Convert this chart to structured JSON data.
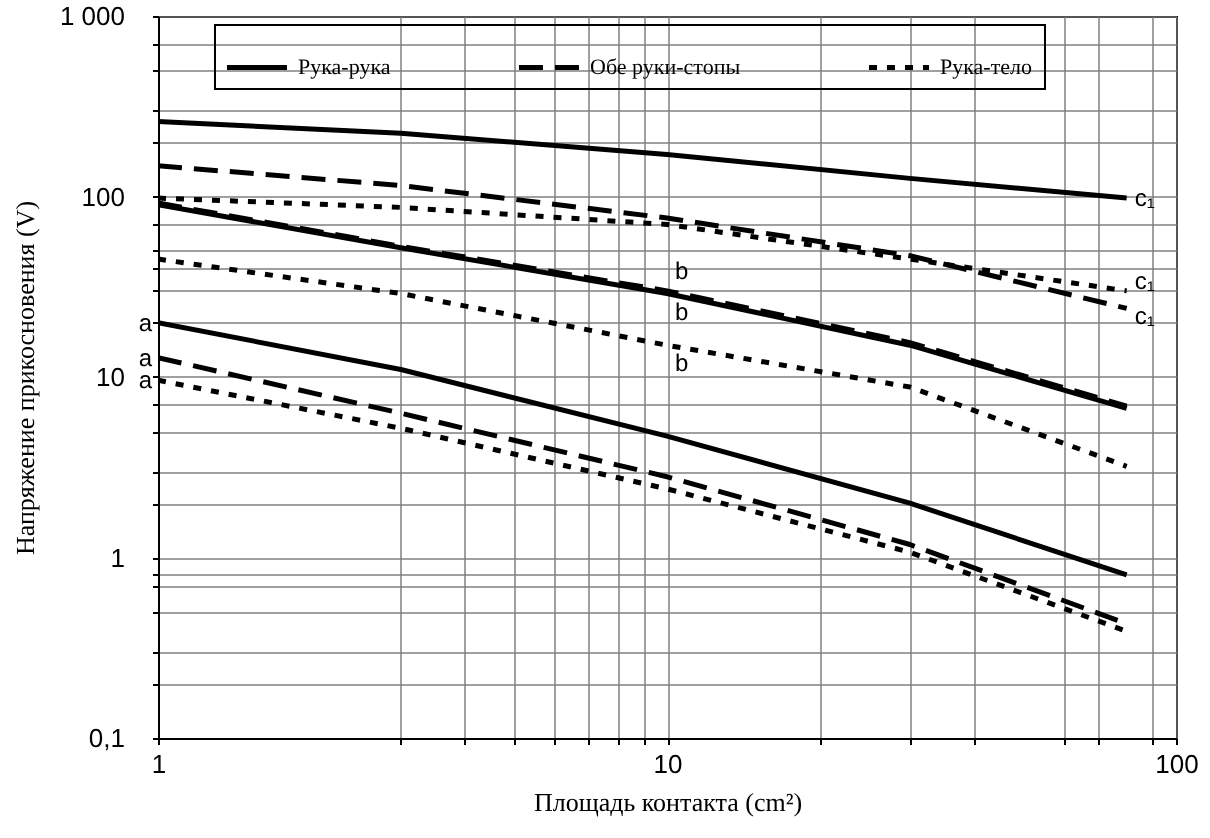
{
  "chart_data": {
    "type": "line",
    "xlabel": "Площадь контакта (cm²)",
    "ylabel": "Напряжение прикосновения (V)",
    "log": "xy",
    "grid": true,
    "legend": "top",
    "xlim": [
      1,
      100
    ],
    "ylim": [
      0.1,
      1000
    ],
    "xticks": [
      1,
      {
        "value": 3,
        "label": null
      },
      {
        "value": 4,
        "label": null
      },
      {
        "value": 5,
        "label": null
      },
      {
        "value": 6,
        "label": null
      },
      {
        "value": 7,
        "label": null
      },
      {
        "value": 8,
        "label": null
      },
      {
        "value": 9,
        "label": null
      },
      10,
      {
        "value": 20,
        "label": null
      },
      {
        "value": 30,
        "label": null
      },
      {
        "value": 40,
        "label": null
      },
      {
        "value": 60,
        "label": null
      },
      {
        "value": 70,
        "label": null
      },
      {
        "value": 90,
        "label": null
      },
      100
    ],
    "yticks": [
      {
        "value": 0.1,
        "label": "0,1"
      },
      {
        "value": 0.2,
        "label": null
      },
      {
        "value": 0.3,
        "label": null
      },
      {
        "value": 0.5,
        "label": null
      },
      {
        "value": 0.7,
        "label": null
      },
      {
        "value": 0.8,
        "label": null
      },
      1,
      {
        "value": 2,
        "label": null
      },
      {
        "value": 3,
        "label": null
      },
      {
        "value": 5,
        "label": null
      },
      {
        "value": 7,
        "label": null
      },
      10,
      {
        "value": 20,
        "label": null
      },
      {
        "value": 30,
        "label": null
      },
      {
        "value": 40,
        "label": null
      },
      {
        "value": 50,
        "label": null
      },
      {
        "value": 70,
        "label": null
      },
      100,
      {
        "value": 200,
        "label": null
      },
      {
        "value": 300,
        "label": null
      },
      {
        "value": 500,
        "label": null
      },
      {
        "value": 700,
        "label": null
      },
      {
        "value": 1000,
        "label": "1 000"
      }
    ],
    "x": [
      1,
      3,
      10,
      30,
      80
    ],
    "series": [
      {
        "name": "Рука-рука",
        "color": "#000000",
        "line_style": "solid",
        "values": [
          260,
          224,
          171,
          126,
          98
        ]
      },
      {
        "name": "Обе руки-стопы",
        "color": "#000000",
        "line_style": "dashed",
        "values": [
          148,
          115,
          76,
          47,
          24
        ]
      },
      {
        "name": "Рука-тело",
        "color": "#000000",
        "line_style": "dotted",
        "values": [
          98,
          87,
          70,
          45,
          30
        ]
      },
      {
        "color": "#000000",
        "line_style": "solid",
        "values": [
          90,
          52,
          29,
          15,
          6.7
        ]
      },
      {
        "color": "#000000",
        "line_style": "dashed",
        "values": [
          92,
          53,
          30,
          15.5,
          6.9
        ]
      },
      {
        "color": "#000000",
        "line_style": "dotted",
        "values": [
          45,
          29,
          15,
          8.8,
          3.2
        ]
      },
      {
        "color": "#000000",
        "line_style": "solid",
        "values": [
          20,
          11,
          4.7,
          2,
          0.8
        ]
      },
      {
        "color": "#000000",
        "line_style": "dashed",
        "values": [
          12.8,
          6.3,
          2.8,
          1.18,
          0.43
        ]
      },
      {
        "color": "#000000",
        "line_style": "dotted",
        "values": [
          9.6,
          5.2,
          2.4,
          1.07,
          0.39
        ]
      }
    ],
    "annotations": [
      {
        "text": "a",
        "x": 1,
        "y": 20
      },
      {
        "text": "a",
        "x": 1,
        "y": 12.8
      },
      {
        "text": "a",
        "x": 1,
        "y": 9.6
      },
      {
        "text": "b",
        "x": 10,
        "y": 30
      },
      {
        "text": "b",
        "x": 10,
        "y": 29
      },
      {
        "text": "b",
        "x": 10,
        "y": 15
      },
      {
        "text": "c₁",
        "x": 80,
        "y": 98
      },
      {
        "text": "c₁",
        "x": 80,
        "y": 30
      },
      {
        "text": "c₁",
        "x": 80,
        "y": 24
      }
    ]
  }
}
